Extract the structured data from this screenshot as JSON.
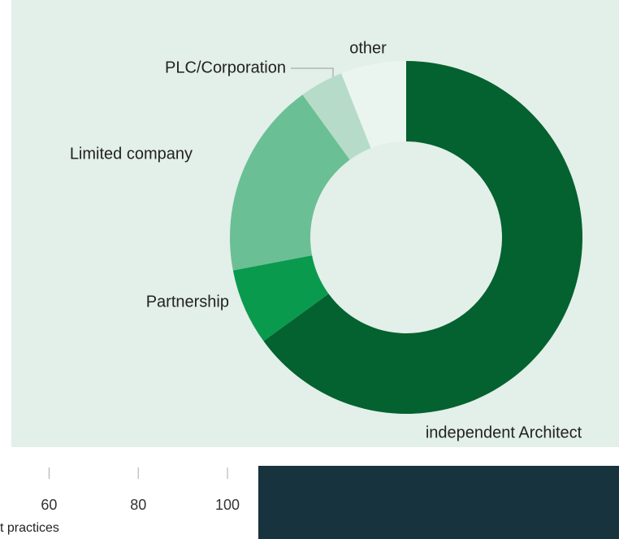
{
  "chart_data": [
    {
      "type": "donut",
      "categories": [
        "independent Architect",
        "Partnership",
        "Limited company",
        "PLC/Corporation",
        "other"
      ],
      "values": [
        65,
        7,
        18,
        4,
        6
      ],
      "colors": [
        "#03622f",
        "#0a9a4e",
        "#6bbf94",
        "#b6dcc9",
        "#eaf5ef"
      ]
    },
    {
      "type": "axis",
      "xlim": [
        49,
        104
      ],
      "xticks": [
        60,
        80,
        100
      ],
      "xlabel": "t practices"
    }
  ]
}
